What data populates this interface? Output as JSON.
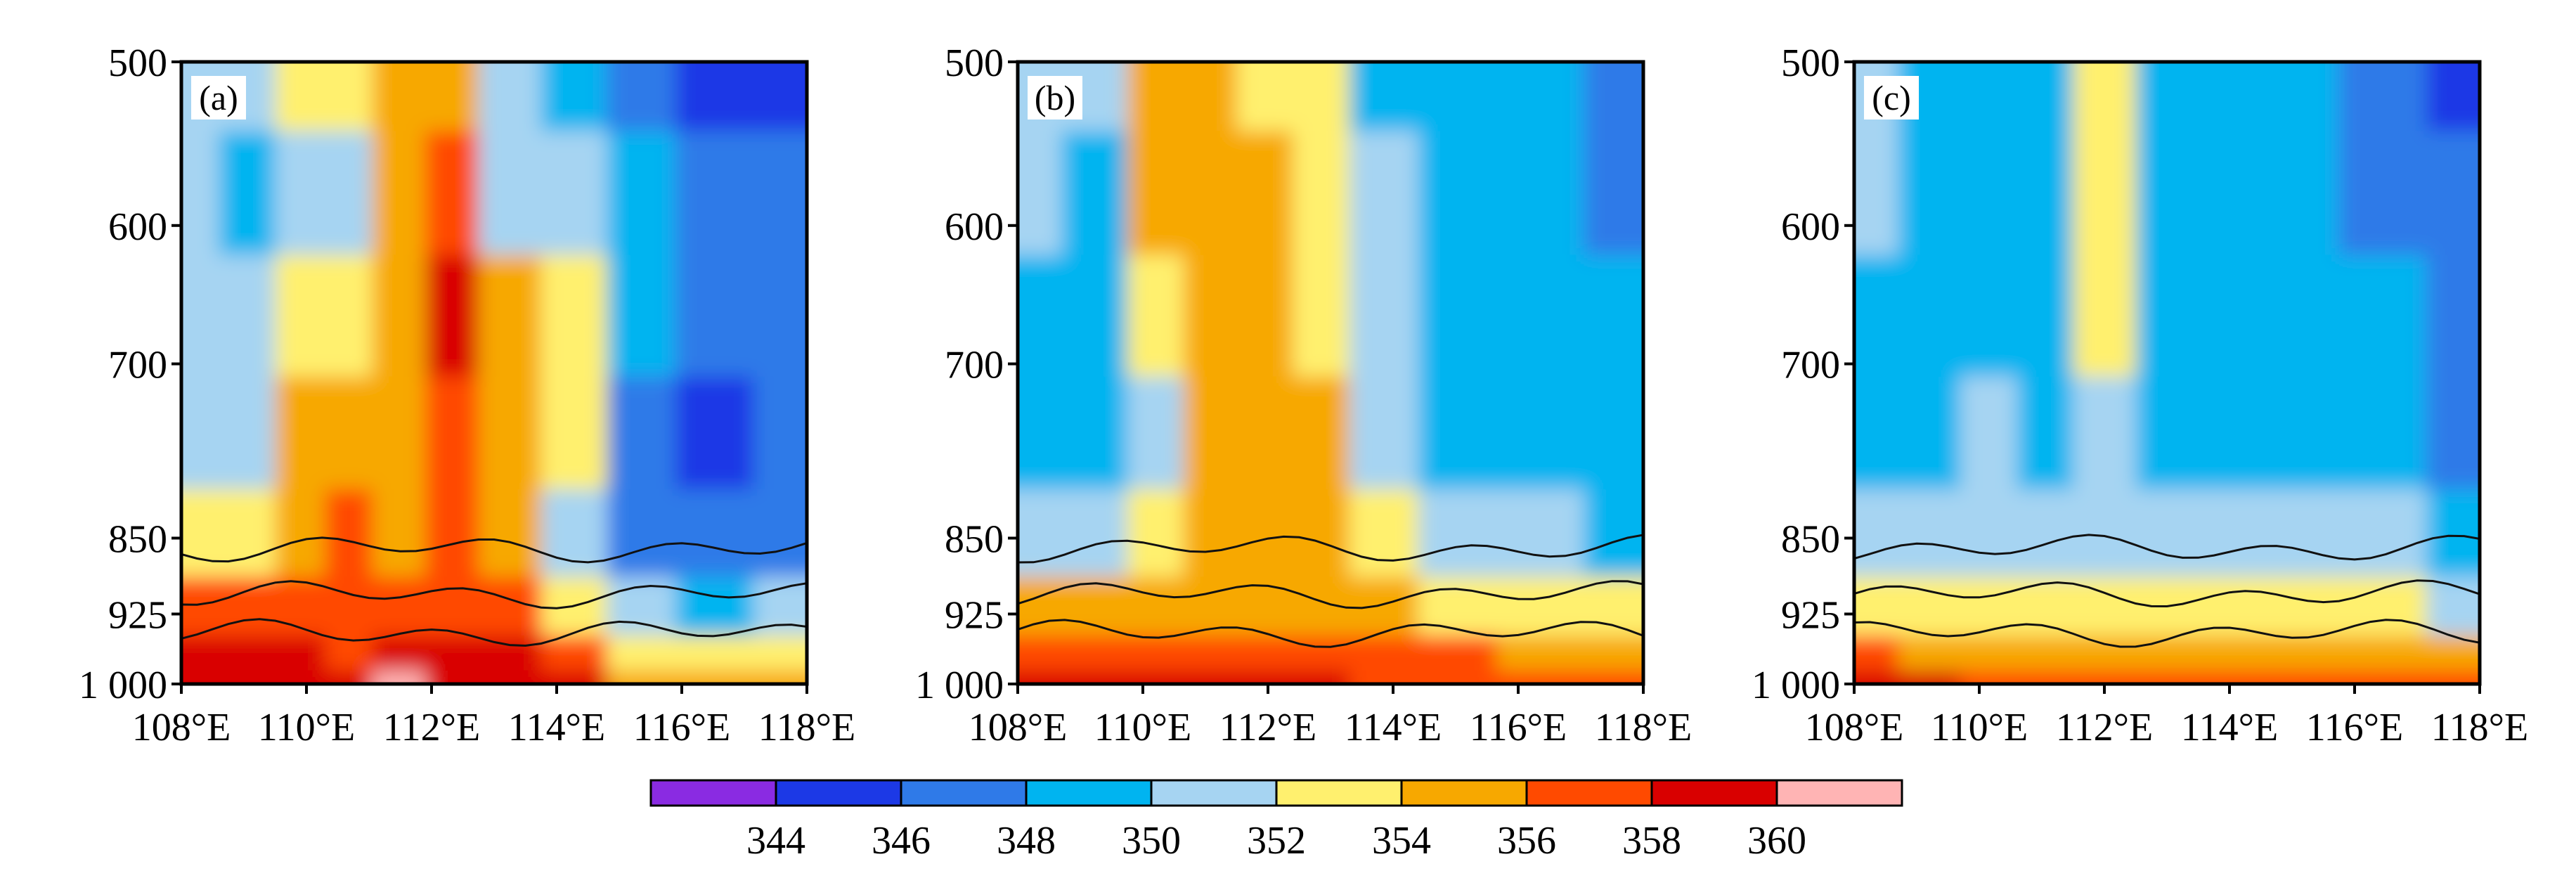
{
  "chart_data": {
    "type": "heatmap",
    "y_ticks": [
      "500",
      "600",
      "700",
      "850",
      "925",
      "1 000"
    ],
    "y_values": [
      500,
      600,
      700,
      850,
      925,
      1000
    ],
    "x_ticks": [
      "108°E",
      "110°E",
      "112°E",
      "114°E",
      "116°E",
      "118°E"
    ],
    "x_values": [
      108,
      110,
      112,
      114,
      116,
      118
    ],
    "xlim": [
      108,
      118
    ],
    "ylim": [
      1000,
      500
    ],
    "colorbar": {
      "tick_labels": [
        "344",
        "346",
        "348",
        "350",
        "352",
        "354",
        "356",
        "358",
        "360"
      ],
      "colors": [
        "#8a2be2",
        "#1c39e6",
        "#2f7ae8",
        "#00b4f0",
        "#a6d4f2",
        "#fff06e",
        "#f7a800",
        "#ff4a00",
        "#d90000",
        "#ffb4b4"
      ]
    },
    "panels": [
      {
        "label": "(a)",
        "columns": [
          {
            "x": 108.2,
            "v": [
              351,
              351,
              351,
              351,
              352,
              356,
              358,
              359
            ]
          },
          {
            "x": 109.0,
            "v": [
              350,
              349,
              351,
              351,
              353,
              356,
              358,
              359
            ]
          },
          {
            "x": 110.0,
            "v": [
              352,
              351,
              352,
              354,
              355,
              356,
              358,
              359
            ]
          },
          {
            "x": 110.6,
            "v": [
              352,
              351,
              353,
              355,
              357,
              356,
              357,
              359
            ]
          },
          {
            "x": 111.5,
            "v": [
              354,
              354,
              355,
              355,
              355,
              356,
              358,
              360
            ]
          },
          {
            "x": 112.3,
            "v": [
              355,
              356,
              358,
              357,
              356,
              356,
              358,
              359
            ]
          },
          {
            "x": 113.2,
            "v": [
              350,
              351,
              354,
              355,
              355,
              356,
              358,
              359
            ]
          },
          {
            "x": 114.3,
            "v": [
              349,
              350,
              353,
              352,
              351,
              353,
              356,
              358
            ]
          },
          {
            "x": 115.3,
            "v": [
              347,
              348,
              349,
              347,
              347,
              350,
              353,
              355
            ]
          },
          {
            "x": 116.5,
            "v": [
              345,
              346,
              347,
              345,
              346,
              349,
              353,
              355
            ]
          },
          {
            "x": 117.8,
            "v": [
              345,
              346,
              347,
              346,
              347,
              350,
              353,
              355
            ]
          }
        ]
      },
      {
        "label": "(b)",
        "columns": [
          {
            "x": 108.2,
            "v": [
              350,
              350,
              349,
              349,
              351,
              354,
              357,
              359
            ]
          },
          {
            "x": 109.2,
            "v": [
              350,
              349,
              349,
              349,
              350,
              354,
              357,
              358
            ]
          },
          {
            "x": 110.3,
            "v": [
              354,
              354,
              352,
              351,
              352,
              355,
              357,
              358
            ]
          },
          {
            "x": 111.0,
            "v": [
              355,
              355,
              355,
              355,
              355,
              355,
              357,
              358
            ]
          },
          {
            "x": 112.0,
            "v": [
              353,
              354,
              354,
              355,
              355,
              355,
              357,
              358
            ]
          },
          {
            "x": 112.8,
            "v": [
              352,
              352,
              353,
              354,
              354,
              355,
              356,
              358
            ]
          },
          {
            "x": 113.8,
            "v": [
              349,
              350,
              350,
              350,
              352,
              354,
              356,
              357
            ]
          },
          {
            "x": 115.0,
            "v": [
              349,
              349,
              349,
              349,
              350,
              353,
              356,
              357
            ]
          },
          {
            "x": 116.3,
            "v": [
              348,
              349,
              349,
              349,
              350,
              352,
              355,
              357
            ]
          },
          {
            "x": 117.8,
            "v": [
              346,
              347,
              348,
              348,
              349,
              352,
              355,
              357
            ]
          }
        ]
      },
      {
        "label": "(c)",
        "columns": [
          {
            "x": 108.2,
            "v": [
              350,
              350,
              348,
              349,
              351,
              353,
              356,
              358
            ]
          },
          {
            "x": 109.2,
            "v": [
              349,
              349,
              348,
              348,
              350,
              353,
              355,
              358
            ]
          },
          {
            "x": 110.2,
            "v": [
              349,
              349,
              349,
              350,
              351,
              352,
              355,
              357
            ]
          },
          {
            "x": 111.0,
            "v": [
              349,
              349,
              349,
              349,
              350,
              352,
              354,
              357
            ]
          },
          {
            "x": 112.0,
            "v": [
              352,
              352,
              352,
              351,
              350,
              352,
              354,
              357
            ]
          },
          {
            "x": 113.0,
            "v": [
              349,
              349,
              349,
              349,
              350,
              352,
              354,
              357
            ]
          },
          {
            "x": 114.0,
            "v": [
              348,
              348,
              349,
              349,
              351,
              352,
              355,
              357
            ]
          },
          {
            "x": 115.0,
            "v": [
              348,
              348,
              349,
              349,
              350,
              352,
              354,
              357
            ]
          },
          {
            "x": 116.5,
            "v": [
              346,
              347,
              348,
              348,
              350,
              352,
              355,
              357
            ]
          },
          {
            "x": 117.8,
            "v": [
              345,
              347,
              347,
              347,
              349,
              351,
              355,
              357
            ]
          }
        ]
      }
    ]
  }
}
